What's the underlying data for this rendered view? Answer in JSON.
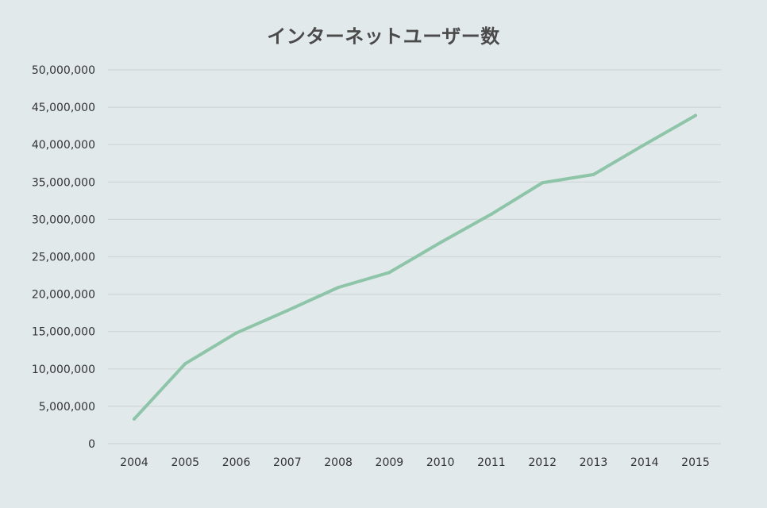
{
  "colors": {
    "background": "#e1e9eb",
    "series": "#8ec5a9",
    "grid": "#cfd6d8",
    "text": "#333333",
    "title": "#4a4a4a"
  },
  "chart_data": {
    "type": "line",
    "title": "インターネットユーザー数",
    "xlabel": "",
    "ylabel": "",
    "categories": [
      "2004",
      "2005",
      "2006",
      "2007",
      "2008",
      "2009",
      "2010",
      "2011",
      "2012",
      "2013",
      "2014",
      "2015"
    ],
    "series": [
      {
        "values": [
          3300000,
          10700000,
          14800000,
          17800000,
          20900000,
          22900000,
          26900000,
          30700000,
          34900000,
          36000000,
          40000000,
          43900000
        ]
      }
    ],
    "ylim": [
      0,
      50000000
    ],
    "yticks": [
      "0",
      "5,000,000",
      "10,000,000",
      "15,000,000",
      "20,000,000",
      "25,000,000",
      "30,000,000",
      "35,000,000",
      "40,000,000",
      "45,000,000",
      "50,000,000"
    ],
    "ytick_values": [
      0,
      5000000,
      10000000,
      15000000,
      20000000,
      25000000,
      30000000,
      35000000,
      40000000,
      45000000,
      50000000
    ],
    "grid": true,
    "legend": "none"
  }
}
